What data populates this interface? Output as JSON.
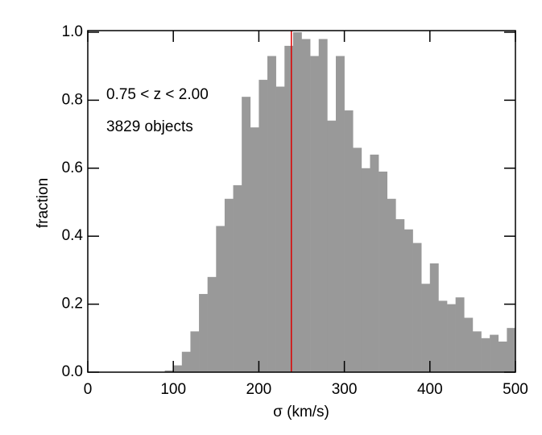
{
  "chart_data": {
    "type": "histogram",
    "xlabel": "σ (km/s)",
    "ylabel": "fraction",
    "annotations": [
      "0.75 < z < 2.00",
      "3829 objects"
    ],
    "bins": [
      90,
      100,
      110,
      120,
      130,
      140,
      150,
      160,
      170,
      180,
      190,
      200,
      210,
      220,
      230,
      240,
      250,
      260,
      270,
      280,
      290,
      300,
      310,
      320,
      330,
      340,
      350,
      360,
      370,
      380,
      390,
      400,
      410,
      420,
      430,
      440,
      450,
      460,
      470,
      480,
      490,
      500
    ],
    "values": [
      0.005,
      0.02,
      0.06,
      0.12,
      0.23,
      0.28,
      0.43,
      0.51,
      0.55,
      0.81,
      0.72,
      0.86,
      0.93,
      0.84,
      0.96,
      1.0,
      0.98,
      0.93,
      0.98,
      0.74,
      0.93,
      0.77,
      0.66,
      0.6,
      0.64,
      0.59,
      0.51,
      0.45,
      0.42,
      0.38,
      0.26,
      0.32,
      0.21,
      0.2,
      0.22,
      0.16,
      0.12,
      0.1,
      0.11,
      0.09,
      0.13
    ],
    "color": "#999999",
    "vline": 238,
    "vline_color": "#dd0000",
    "xlim": [
      0,
      500
    ],
    "xticks": [
      0,
      100,
      200,
      300,
      400,
      500
    ],
    "ylim": [
      0,
      1
    ],
    "yticks": [
      {
        "value": 0,
        "label": "0.0"
      },
      0.2,
      0.4,
      0.6,
      0.8,
      {
        "value": 1,
        "label": "1.0"
      }
    ]
  }
}
